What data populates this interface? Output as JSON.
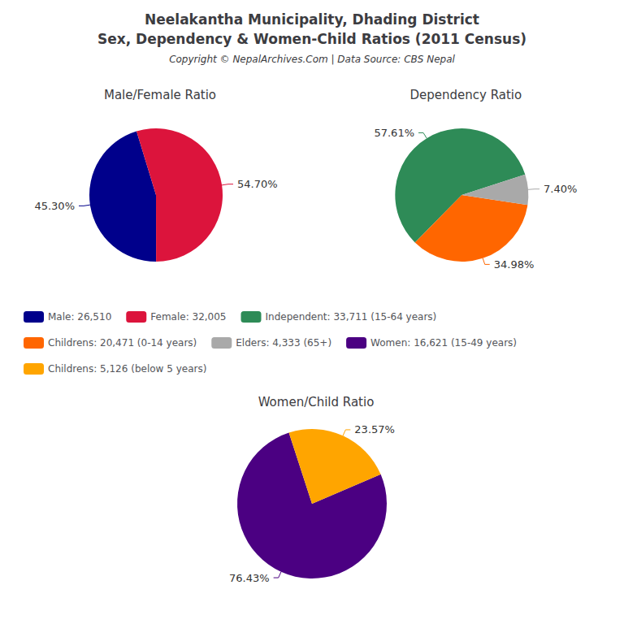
{
  "title": "Neelakantha Municipality, Dhading District",
  "subtitle": "Sex, Dependency & Women-Child Ratios (2011 Census)",
  "annotations": [
    "Copyright © NepalArchives.Com | Data Source: CBS Nepal"
  ],
  "chart_data": [
    {
      "type": "pie",
      "title": "Male/Female Ratio",
      "categories": [
        "Male: 26,510",
        "Female: 32,005"
      ],
      "values": [
        45.3,
        54.7
      ],
      "value_labels": [
        "45.30%",
        "54.70%"
      ],
      "colors": [
        "#00008B",
        "#DC143C"
      ],
      "legend": "center"
    },
    {
      "type": "pie",
      "title": "Dependency Ratio",
      "categories": [
        "Independent: 33,711 (15-64 years)",
        "Childrens: 20,471 (0-14 years)",
        "Elders: 4,333 (65+)"
      ],
      "values": [
        57.61,
        34.98,
        7.4
      ],
      "value_labels": [
        "57.61%",
        "34.98%",
        "7.40%"
      ],
      "colors": [
        "#2E8B57",
        "#FF6600",
        "#A9A9A9"
      ],
      "legend": "center"
    },
    {
      "type": "pie",
      "title": "Women/Child Ratio",
      "categories": [
        "Women: 16,621 (15-49 years)",
        "Childrens: 5,126 (below 5 years)"
      ],
      "values": [
        76.43,
        23.57
      ],
      "value_labels": [
        "76.43%",
        "23.57%"
      ],
      "colors": [
        "#4B0082",
        "#FFA500"
      ],
      "legend": "center"
    }
  ]
}
